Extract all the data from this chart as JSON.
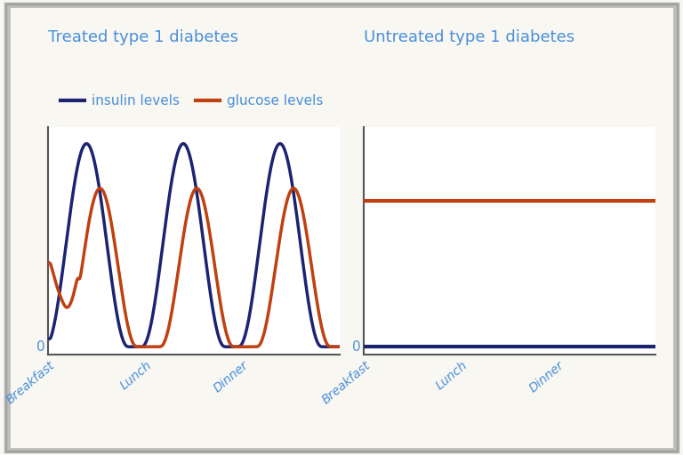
{
  "title_left": "Treated type 1 diabetes",
  "title_right": "Untreated type 1 diabetes",
  "legend_insulin": "insulin levels",
  "legend_glucose": "glucose levels",
  "insulin_color": "#1c2472",
  "glucose_color": "#c04010",
  "x_ticks": [
    "Breakfast",
    "Lunch",
    "Dinner"
  ],
  "tick_color": "#4a90d9",
  "title_color": "#4a90d9",
  "background_color": "#f8f7f2",
  "border_color": "#999999",
  "zero_label_color": "#4a90d9",
  "line_width": 2.5,
  "axis_line_color": "#555555",
  "untreated_glucose_level": 0.72,
  "untreated_insulin_level": 0.0
}
